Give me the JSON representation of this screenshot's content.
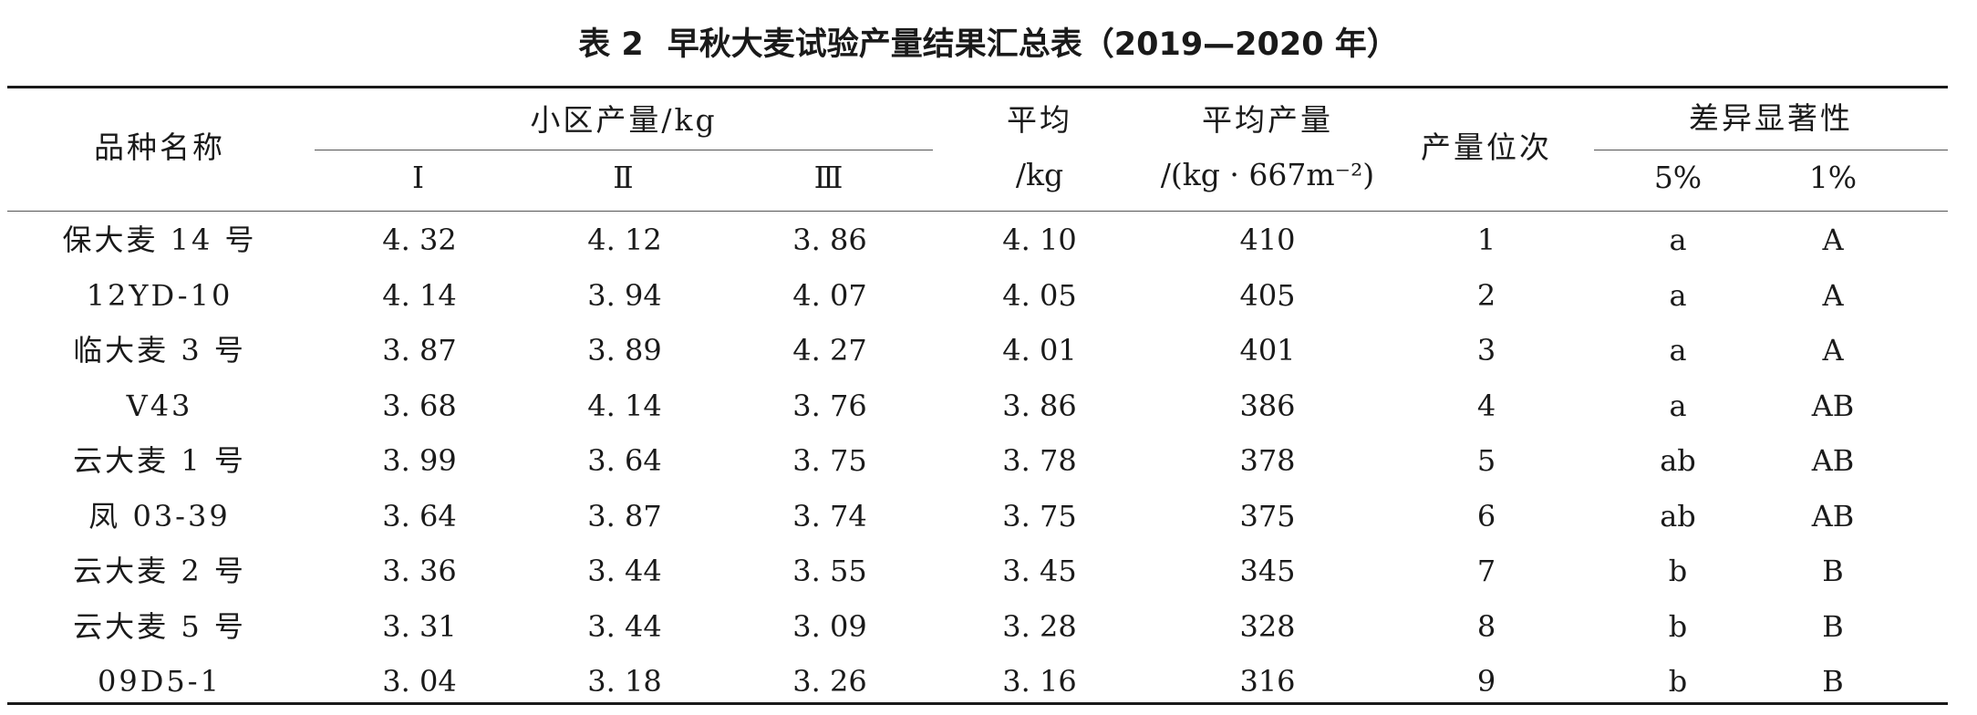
{
  "caption": {
    "label": "表 2",
    "title": "早秋大麦试验产量结果汇总表（2019—2020 年）"
  },
  "headers": {
    "variety": "品种名称",
    "plot_yield": "小区产量/kg",
    "rep1": "Ⅰ",
    "rep2": "Ⅱ",
    "rep3": "Ⅲ",
    "avg_line1": "平均",
    "avg_line2": "/kg",
    "avg_yield_line1": "平均产量",
    "avg_yield_line2": "/(kg · 667m⁻²)",
    "rank": "产量位次",
    "significance": "差异显著性",
    "sig5": "5%",
    "sig1": "1%"
  },
  "rows": [
    [
      "保大麦 14 号",
      "4. 32",
      "4. 12",
      "3. 86",
      "4. 10",
      "410",
      "1",
      "a",
      "A"
    ],
    [
      "12YD-10",
      "4. 14",
      "3. 94",
      "4. 07",
      "4. 05",
      "405",
      "2",
      "a",
      "A"
    ],
    [
      "临大麦 3 号",
      "3. 87",
      "3. 89",
      "4. 27",
      "4. 01",
      "401",
      "3",
      "a",
      "A"
    ],
    [
      "V43",
      "3. 68",
      "4. 14",
      "3. 76",
      "3. 86",
      "386",
      "4",
      "a",
      "AB"
    ],
    [
      "云大麦 1 号",
      "3. 99",
      "3. 64",
      "3. 75",
      "3. 78",
      "378",
      "5",
      "ab",
      "AB"
    ],
    [
      "凤 03-39",
      "3. 64",
      "3. 87",
      "3. 74",
      "3. 75",
      "375",
      "6",
      "ab",
      "AB"
    ],
    [
      "云大麦 2 号",
      "3. 36",
      "3. 44",
      "3. 55",
      "3. 45",
      "345",
      "7",
      "b",
      "B"
    ],
    [
      "云大麦 5 号",
      "3. 31",
      "3. 44",
      "3. 09",
      "3. 28",
      "328",
      "8",
      "b",
      "B"
    ],
    [
      "09D5-1",
      "3. 04",
      "3. 18",
      "3. 26",
      "3. 16",
      "316",
      "9",
      "b",
      "B"
    ]
  ]
}
